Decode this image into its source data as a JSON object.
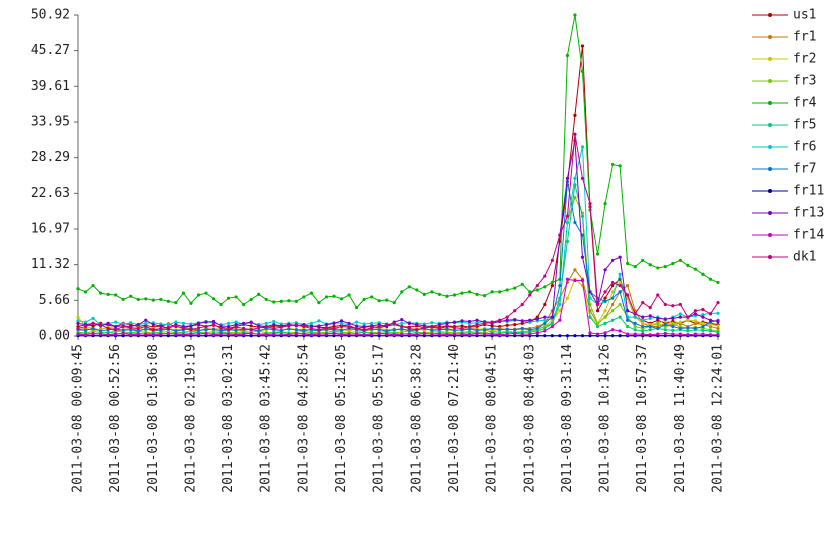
{
  "chart_data": {
    "type": "line",
    "categories": [
      "2011-03-08 00:09:45",
      null,
      null,
      null,
      null,
      "2011-03-08 00:52:56",
      null,
      null,
      null,
      null,
      "2011-03-08 01:36:08",
      null,
      null,
      null,
      null,
      "2011-03-08 02:19:19",
      null,
      null,
      null,
      null,
      "2011-03-08 03:02:31",
      null,
      null,
      null,
      null,
      "2011-03-08 03:45:42",
      null,
      null,
      null,
      null,
      "2011-03-08 04:28:54",
      null,
      null,
      null,
      null,
      "2011-03-08 05:12:05",
      null,
      null,
      null,
      null,
      "2011-03-08 05:55:17",
      null,
      null,
      null,
      null,
      "2011-03-08 06:38:28",
      null,
      null,
      null,
      null,
      "2011-03-08 07:21:40",
      null,
      null,
      null,
      null,
      "2011-03-08 08:04:51",
      null,
      null,
      null,
      null,
      "2011-03-08 08:48:03",
      null,
      null,
      null,
      null,
      "2011-03-08 09:31:14",
      null,
      null,
      null,
      null,
      "2011-03-08 10:14:26",
      null,
      null,
      null,
      null,
      "2011-03-08 10:57:37",
      null,
      null,
      null,
      null,
      "2011-03-08 11:40:49",
      null,
      null,
      null,
      null,
      "2011-03-08 12:24:01"
    ],
    "ylim": [
      0,
      50.92
    ],
    "yticks": [
      {
        "value": 0,
        "label": "0.00"
      },
      5.66,
      11.32,
      16.97,
      22.63,
      28.29,
      33.95,
      39.61,
      45.27,
      50.92
    ],
    "series": [
      {
        "name": "us1",
        "color": "#b00000",
        "values": [
          1.5,
          1.8,
          1.6,
          2.0,
          1.7,
          1.5,
          2.0,
          1.8,
          1.5,
          1.7,
          1.4,
          1.6,
          1.9,
          1.5,
          1.3,
          1.6,
          1.8,
          1.5,
          1.7,
          1.4,
          1.2,
          1.5,
          1.8,
          1.6,
          1.4,
          1.3,
          1.6,
          1.5,
          1.8,
          1.7,
          1.5,
          1.6,
          1.4,
          1.3,
          1.5,
          1.7,
          1.6,
          1.2,
          1.4,
          1.5,
          1.3,
          1.6,
          1.8,
          1.5,
          1.4,
          1.6,
          1.3,
          1.5,
          1.4,
          1.6,
          1.5,
          1.6,
          1.4,
          1.5,
          1.8,
          1.6,
          1.5,
          1.7,
          1.8,
          2.0,
          2.2,
          3,
          5,
          8,
          15,
          24,
          35,
          46,
          20.5,
          4,
          6,
          8,
          9,
          6,
          3,
          2.5,
          2,
          2.5,
          2,
          2.3,
          2,
          2.5,
          2,
          2.2,
          2,
          1.8
        ]
      },
      {
        "name": "fr1",
        "color": "#c87800",
        "values": [
          1.0,
          1.2,
          0.9,
          1.1,
          1.3,
          0.8,
          1.0,
          1.2,
          0.9,
          1.1,
          0.8,
          1.0,
          1.2,
          0.9,
          1.1,
          1.0,
          0.8,
          1.2,
          1.0,
          0.9,
          1.1,
          1.0,
          0.8,
          1.2,
          0.9,
          1.0,
          1.1,
          0.9,
          1.2,
          1.0,
          0.8,
          1.1,
          1.0,
          0.9,
          1.2,
          1.0,
          0.9,
          1.1,
          0.8,
          1.0,
          1.2,
          0.9,
          1.0,
          1.1,
          0.8,
          1.0,
          1.2,
          0.9,
          1.1,
          1.0,
          0.9,
          1.0,
          1.2,
          1.1,
          0.9,
          1.0,
          1.2,
          1.0,
          1.1,
          1.2,
          1.2,
          1.5,
          2,
          4,
          6,
          8.5,
          10.5,
          9,
          4,
          2,
          3,
          5,
          7,
          8,
          4,
          2,
          1.5,
          1.5,
          2,
          1.8,
          2,
          1.5,
          2,
          1.8,
          1.5,
          1.2
        ]
      },
      {
        "name": "fr2",
        "color": "#c8c800",
        "values": [
          3.0,
          1.5,
          1.2,
          1.0,
          1.4,
          1.2,
          0.9,
          1.1,
          1.3,
          1.0,
          1.2,
          0.9,
          1.1,
          1.0,
          1.2,
          1.3,
          0.9,
          1.0,
          1.1,
          1.2,
          0.9,
          1.1,
          1.0,
          1.2,
          0.8,
          1.0,
          1.1,
          0.9,
          1.2,
          1.0,
          1.1,
          0.9,
          1.0,
          1.2,
          1.1,
          0.9,
          1.0,
          1.1,
          1.0,
          0.9,
          1.2,
          1.0,
          1.1,
          0.9,
          1.0,
          1.2,
          0.9,
          1.1,
          1.0,
          1.2,
          1.0,
          0.9,
          1.1,
          1.0,
          1.2,
          0.9,
          1.0,
          1.1,
          1.0,
          1.1,
          1,
          1.2,
          1.5,
          2.5,
          4,
          6,
          9,
          8,
          3,
          2,
          4,
          7,
          8.5,
          6,
          3,
          2,
          1.8,
          2,
          2.5,
          2,
          2.2,
          2.5,
          2.4,
          2,
          1.8,
          1.6
        ]
      },
      {
        "name": "fr3",
        "color": "#78c800",
        "values": [
          0.6,
          0.5,
          0.7,
          0.6,
          0.5,
          0.8,
          0.6,
          0.5,
          0.7,
          0.6,
          0.5,
          0.6,
          0.7,
          0.5,
          0.6,
          0.8,
          0.6,
          0.5,
          0.7,
          0.6,
          0.6,
          0.5,
          0.7,
          0.6,
          0.8,
          0.5,
          0.6,
          0.7,
          0.5,
          0.6,
          0.7,
          0.6,
          0.5,
          0.6,
          0.8,
          0.6,
          0.5,
          0.7,
          0.6,
          0.5,
          0.6,
          0.7,
          0.5,
          0.6,
          0.8,
          0.6,
          0.5,
          0.6,
          0.7,
          0.6,
          0.5,
          0.6,
          0.7,
          0.6,
          0.5,
          0.8,
          0.6,
          0.7,
          0.6,
          0.7,
          0.8,
          1,
          1.5,
          2,
          5,
          18,
          22,
          19.5,
          5,
          2,
          3,
          4,
          5,
          3,
          1.5,
          1.2,
          1.5,
          2,
          1.5,
          1.8,
          1.5,
          1.2,
          1.4,
          1.2,
          1,
          0.8
        ]
      },
      {
        "name": "fr4",
        "color": "#00b400",
        "values": [
          7.5,
          7.0,
          8.0,
          6.8,
          6.6,
          6.5,
          5.8,
          6.3,
          5.8,
          5.9,
          5.7,
          5.8,
          5.5,
          5.3,
          6.8,
          5.2,
          6.5,
          6.8,
          5.9,
          5.0,
          6.0,
          6.2,
          5.0,
          5.8,
          6.6,
          5.8,
          5.4,
          5.5,
          5.6,
          5.5,
          6.2,
          6.8,
          5.3,
          6.2,
          6.3,
          5.9,
          6.5,
          4.5,
          5.8,
          6.2,
          5.6,
          5.7,
          5.3,
          7.0,
          7.8,
          7.3,
          6.6,
          7.0,
          6.6,
          6.3,
          6.5,
          6.8,
          7.0,
          6.6,
          6.4,
          7.0,
          7.0,
          7.3,
          7.6,
          8.2,
          7.0,
          7.3,
          7.8,
          8.5,
          9.0,
          44.5,
          50.92,
          42,
          20,
          13,
          21,
          27.2,
          27,
          11.5,
          11,
          12,
          11.3,
          10.8,
          11,
          11.5,
          12,
          11.2,
          10.6,
          9.8,
          9,
          8.5
        ]
      },
      {
        "name": "fr5",
        "color": "#00c878",
        "values": [
          0.4,
          0.5,
          0.3,
          0.4,
          0.6,
          0.4,
          0.3,
          0.5,
          0.4,
          0.3,
          0.5,
          0.4,
          0.3,
          0.4,
          0.5,
          0.4,
          0.6,
          0.3,
          0.4,
          0.5,
          0.4,
          0.3,
          0.5,
          0.4,
          0.3,
          0.4,
          0.5,
          0.6,
          0.4,
          0.3,
          0.4,
          0.5,
          0.3,
          0.4,
          0.5,
          0.4,
          0.3,
          0.4,
          0.6,
          0.4,
          0.3,
          0.5,
          0.4,
          0.3,
          0.4,
          0.5,
          0.4,
          0.3,
          0.5,
          0.4,
          0.3,
          0.4,
          0.5,
          0.4,
          0.3,
          0.5,
          0.4,
          0.6,
          0.5,
          0.6,
          0.6,
          0.8,
          1.2,
          2,
          6,
          15,
          24,
          19,
          3,
          1.5,
          2,
          2.5,
          3,
          1.5,
          1,
          0.8,
          1,
          1.2,
          1,
          0.9,
          1,
          0.8,
          1,
          0.9,
          0.8,
          0.6
        ]
      },
      {
        "name": "fr6",
        "color": "#00c8c8",
        "values": [
          2.4,
          2.2,
          2.8,
          1.8,
          2.0,
          2.2,
          1.9,
          2.1,
          1.8,
          2.0,
          2.1,
          1.9,
          1.8,
          2.2,
          2.0,
          1.9,
          2.1,
          2.3,
          2.0,
          1.8,
          2.0,
          2.2,
          1.9,
          2.1,
          1.8,
          2.0,
          2.3,
          1.9,
          2.0,
          2.1,
          1.8,
          2.0,
          2.4,
          1.9,
          2.1,
          2.0,
          1.8,
          2.2,
          1.9,
          2.0,
          2.1,
          1.9,
          1.8,
          2.0,
          2.1,
          2.0,
          1.9,
          2.1,
          2.0,
          2.2,
          2.1,
          2.2,
          2.0,
          2.1,
          2.3,
          2.2,
          2.4,
          2.3,
          2.5,
          2.4,
          2.2,
          2.4,
          2.5,
          2.8,
          5,
          18,
          25,
          30,
          6,
          5,
          5.5,
          6,
          9.8,
          3,
          3,
          2.5,
          2.8,
          3,
          2.6,
          3,
          3.5,
          3,
          3.2,
          3.4,
          3.6,
          3.6
        ]
      },
      {
        "name": "fr7",
        "color": "#0078c8",
        "values": [
          1.0,
          0.9,
          1.2,
          0.8,
          1.0,
          1.1,
          0.9,
          1.0,
          0.8,
          1.1,
          1.0,
          0.9,
          1.1,
          0.8,
          1.0,
          1.2,
          0.9,
          1.0,
          1.1,
          0.8,
          1.0,
          0.9,
          1.1,
          1.0,
          0.8,
          1.2,
          1.0,
          0.9,
          1.1,
          1.0,
          0.9,
          1.0,
          0.8,
          1.1,
          1.0,
          0.9,
          1.2,
          1.0,
          0.9,
          1.1,
          1.0,
          0.8,
          1.0,
          1.1,
          0.9,
          1.0,
          1.2,
          0.9,
          1.0,
          1.1,
          0.9,
          1.0,
          1.1,
          0.9,
          1.0,
          1.2,
          1.0,
          1.1,
          1.0,
          1.2,
          1,
          1.2,
          2,
          3,
          8,
          24.5,
          18,
          16,
          7,
          6,
          5.5,
          6,
          7,
          2.5,
          2,
          1.5,
          1.5,
          1.2,
          1.8,
          1.5,
          1.2,
          1.3,
          1.2,
          1.5,
          2.2,
          2.5
        ]
      },
      {
        "name": "fr11",
        "color": "#0000a0",
        "values": [
          0.05,
          0.05,
          0.05,
          0.05,
          0.05,
          0.05,
          0.05,
          0.05,
          0.05,
          0.05,
          0.05,
          0.05,
          0.05,
          0.05,
          0.05,
          0.05,
          0.05,
          0.05,
          0.05,
          0.05,
          0.05,
          0.05,
          0.05,
          0.05,
          0.05,
          0.05,
          0.05,
          0.05,
          0.05,
          0.05,
          0.05,
          0.05,
          0.05,
          0.05,
          0.05,
          0.05,
          0.05,
          0.05,
          0.05,
          0.05,
          0.05,
          0.05,
          0.05,
          0.05,
          0.05,
          0.05,
          0.05,
          0.05,
          0.05,
          0.05,
          0.05,
          0.05,
          0.05,
          0.05,
          0.05,
          0.05,
          0.05,
          0.05,
          0.05,
          0.05,
          0.05,
          0.05,
          0.05,
          0.05,
          0.05,
          0.05,
          0.05,
          0.05,
          0.05,
          0.05,
          0.05,
          0.05,
          0.05,
          0.05,
          0.05,
          0.05,
          0.05,
          0.05,
          0.05,
          0.05,
          0.05,
          0.05,
          0.05,
          0.05,
          0.05,
          0.05
        ]
      },
      {
        "name": "fr13",
        "color": "#7800c8",
        "values": [
          2.0,
          1.8,
          2.0,
          1.6,
          2.0,
          1.5,
          1.6,
          1.5,
          1.8,
          2.5,
          1.8,
          1.6,
          1.2,
          1.8,
          1.5,
          1.6,
          2.0,
          2.2,
          2.3,
          1.6,
          1.5,
          1.8,
          2.0,
          2.2,
          1.6,
          1.5,
          1.8,
          1.6,
          1.8,
          1.6,
          1.8,
          1.5,
          1.6,
          1.8,
          2.0,
          2.4,
          2.0,
          1.6,
          1.5,
          1.6,
          1.8,
          1.5,
          2.2,
          2.6,
          2.0,
          1.8,
          1.6,
          1.5,
          1.8,
          2.0,
          2.2,
          2.4,
          2.3,
          2.5,
          2.2,
          2.0,
          2.3,
          2.5,
          2.6,
          2.4,
          2.5,
          2.7,
          3,
          3,
          16,
          25,
          31,
          12.5,
          7,
          5,
          10.5,
          12,
          12.5,
          4,
          3.5,
          3,
          3.2,
          2.8,
          2.7,
          2.8,
          3,
          3,
          3.5,
          3,
          2.5,
          2.3
        ]
      },
      {
        "name": "fr14",
        "color": "#c800c8",
        "values": [
          0.3,
          0.2,
          0.4,
          0.3,
          0.2,
          0.3,
          0.4,
          0.2,
          0.3,
          0.3,
          0.2,
          0.3,
          0.4,
          0.3,
          0.2,
          0.3,
          0.3,
          0.4,
          0.2,
          0.3,
          0.3,
          0.2,
          0.3,
          0.4,
          0.3,
          0.2,
          0.3,
          0.3,
          0.2,
          0.4,
          0.3,
          0.2,
          0.3,
          0.3,
          0.4,
          0.2,
          0.3,
          0.3,
          0.2,
          0.3,
          0.4,
          0.3,
          0.2,
          0.3,
          0.3,
          0.2,
          0.4,
          0.3,
          0.3,
          0.2,
          0.3,
          0.3,
          0.2,
          0.4,
          0.3,
          0.3,
          0.2,
          0.3,
          0.4,
          0.3,
          0.3,
          0.5,
          0.8,
          1.5,
          2.5,
          9,
          8.8,
          8.8,
          0.5,
          0.3,
          0.5,
          1,
          0.8,
          0.3,
          0.3,
          0.3,
          0.2,
          0.3,
          0.4,
          0.3,
          0.3,
          0.2,
          0.3,
          0.3,
          0.2,
          0.2
        ]
      },
      {
        "name": "dk1",
        "color": "#c80078",
        "values": [
          1.2,
          1.5,
          2.0,
          1.8,
          1.2,
          1.0,
          1.5,
          1.3,
          1.2,
          1.5,
          1.0,
          1.2,
          1.4,
          1.6,
          1.2,
          1.0,
          1.3,
          1.5,
          1.8,
          1.2,
          1.0,
          1.4,
          1.2,
          1.0,
          1.3,
          1.5,
          1.2,
          1.4,
          1.6,
          1.8,
          1.5,
          1.2,
          1.0,
          1.3,
          1.2,
          1.5,
          1.4,
          1.2,
          1.0,
          1.3,
          1.5,
          1.8,
          2.0,
          1.5,
          1.2,
          1.0,
          1.3,
          1.4,
          1.2,
          1.5,
          1.3,
          1.2,
          1.5,
          1.8,
          2.0,
          2.2,
          2.5,
          3.0,
          4.0,
          5.0,
          6.5,
          8,
          9.5,
          12,
          16,
          19,
          32,
          25,
          21,
          5,
          7,
          8.5,
          8,
          6.5,
          3.5,
          5.3,
          4.5,
          6.5,
          5,
          4.8,
          5,
          3,
          4,
          4.2,
          3.5,
          5.3
        ]
      }
    ]
  }
}
